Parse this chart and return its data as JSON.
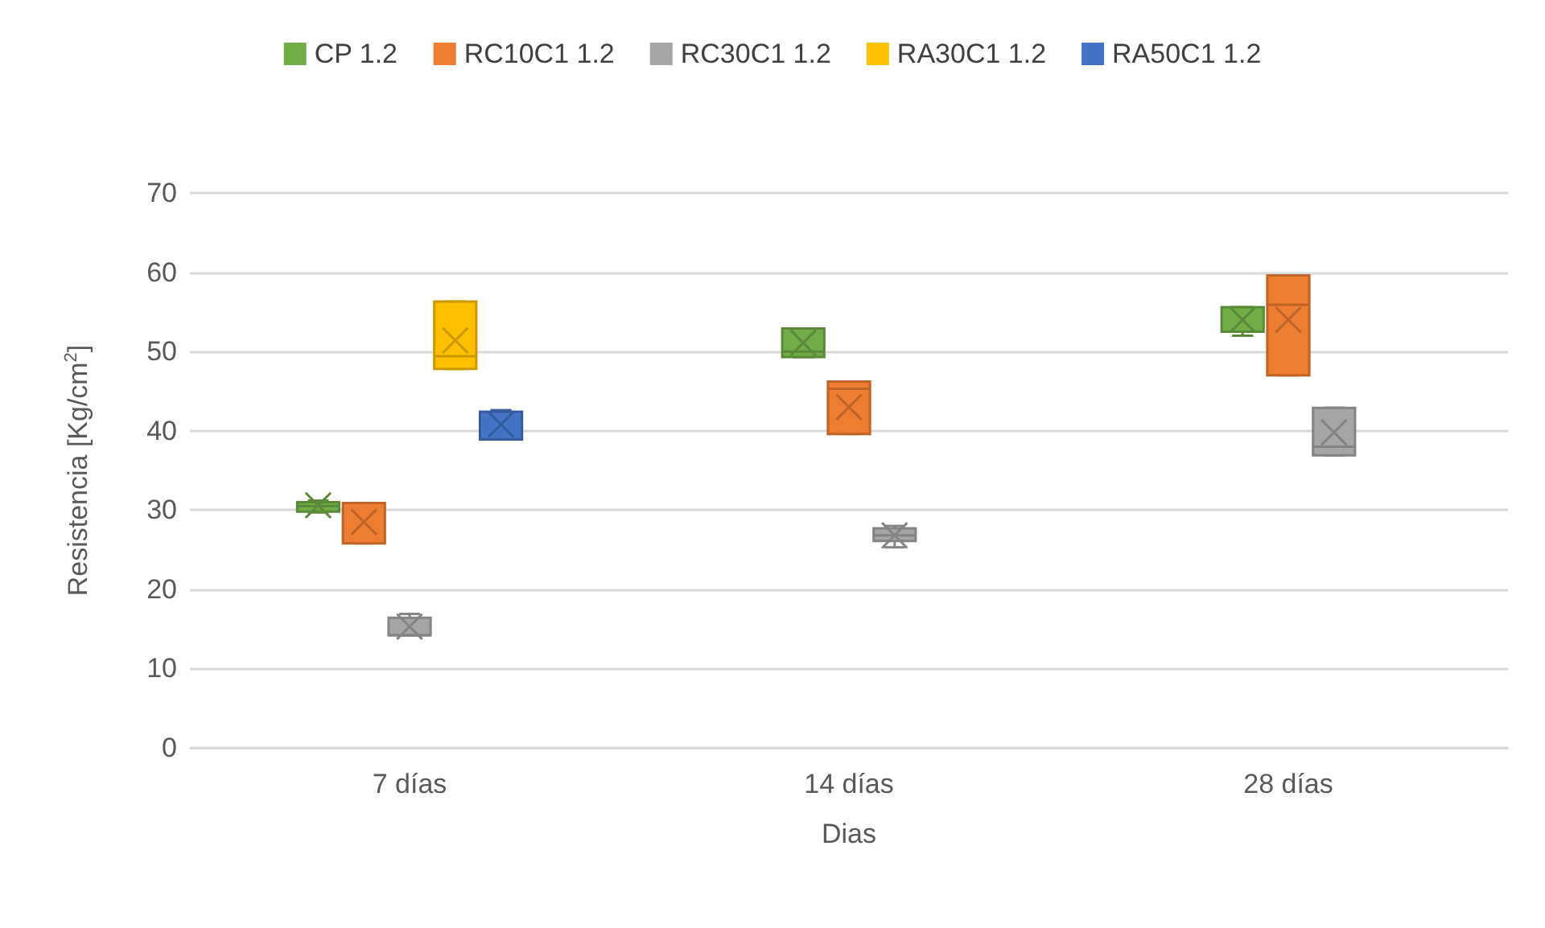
{
  "chart_data": {
    "type": "box",
    "xlabel": "Dias",
    "ylabel": "Resistencia [Kg/cm$^{2}$]",
    "categories": [
      "7 días",
      "14 días",
      "28 días"
    ],
    "ylim": [
      0,
      70
    ],
    "yticks": [
      0,
      10,
      20,
      30,
      40,
      50,
      60,
      70
    ],
    "grid": "y",
    "legend": "top",
    "series": [
      {
        "name": "CP 1.2",
        "color": "#70ad47",
        "boxes": [
          {
            "low": 29.7,
            "q1": 29.8,
            "median": 30.5,
            "q3": 31.0,
            "high": 31.2,
            "mean": 30.6
          },
          {
            "low": 49.3,
            "q1": 49.3,
            "median": 50.0,
            "q3": 52.9,
            "high": 52.9,
            "mean": 51.1
          },
          {
            "low": 52.0,
            "q1": 52.5,
            "median": 52.5,
            "q3": 55.6,
            "high": 55.6,
            "mean": 54.0
          }
        ]
      },
      {
        "name": "RC10C1 1.2",
        "color": "#ed7d31",
        "boxes": [
          {
            "low": 25.8,
            "q1": 25.8,
            "median": 30.9,
            "q3": 30.9,
            "high": 30.9,
            "mean": 28.5
          },
          {
            "low": 39.6,
            "q1": 39.6,
            "median": 45.3,
            "q3": 46.2,
            "high": 46.2,
            "mean": 43.0
          },
          {
            "low": 47.0,
            "q1": 47.0,
            "median": 55.9,
            "q3": 59.6,
            "high": 59.6,
            "mean": 54.0
          }
        ]
      },
      {
        "name": "RC30C1 1.2",
        "color": "#a5a5a5",
        "boxes": [
          {
            "low": 14.2,
            "q1": 14.2,
            "median": 14.2,
            "q3": 16.4,
            "high": 16.9,
            "mean": 15.3
          },
          {
            "low": 25.3,
            "q1": 26.1,
            "median": 26.8,
            "q3": 27.7,
            "high": 28.0,
            "mean": 26.8
          },
          {
            "low": 36.9,
            "q1": 36.9,
            "median": 38.0,
            "q3": 42.9,
            "high": 42.9,
            "mean": 39.8
          }
        ]
      },
      {
        "name": "RA30C1 1.2",
        "color": "#ffc000",
        "boxes": [
          {
            "low": 47.8,
            "q1": 47.8,
            "median": 49.4,
            "q3": 56.3,
            "high": 56.3,
            "mean": 51.4
          },
          null,
          null
        ]
      },
      {
        "name": "RA50C1 1.2",
        "color": "#4472c4",
        "boxes": [
          {
            "low": 38.9,
            "q1": 38.9,
            "median": 38.9,
            "q3": 42.4,
            "high": 42.6,
            "mean": 40.8
          },
          null,
          null
        ]
      }
    ]
  }
}
